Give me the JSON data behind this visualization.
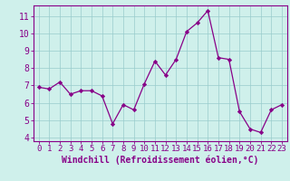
{
  "x": [
    0,
    1,
    2,
    3,
    4,
    5,
    6,
    7,
    8,
    9,
    10,
    11,
    12,
    13,
    14,
    15,
    16,
    17,
    18,
    19,
    20,
    21,
    22,
    23
  ],
  "y": [
    6.9,
    6.8,
    7.2,
    6.5,
    6.7,
    6.7,
    6.4,
    4.8,
    5.9,
    5.6,
    7.1,
    8.4,
    7.6,
    8.5,
    10.1,
    10.6,
    11.3,
    8.6,
    8.5,
    5.5,
    4.5,
    4.3,
    5.6,
    5.9
  ],
  "line_color": "#880088",
  "marker": "D",
  "marker_size": 2.2,
  "bg_color": "#cff0eb",
  "grid_color": "#99cccc",
  "xlabel": "Windchill (Refroidissement éolien,°C)",
  "xlim": [
    -0.5,
    23.5
  ],
  "ylim": [
    3.8,
    11.6
  ],
  "yticks": [
    4,
    5,
    6,
    7,
    8,
    9,
    10,
    11
  ],
  "xticks": [
    0,
    1,
    2,
    3,
    4,
    5,
    6,
    7,
    8,
    9,
    10,
    11,
    12,
    13,
    14,
    15,
    16,
    17,
    18,
    19,
    20,
    21,
    22,
    23
  ],
  "tick_color": "#880088",
  "label_color": "#880088",
  "spine_color": "#880088",
  "tick_fontsize": 6.5,
  "xlabel_fontsize": 7.0
}
